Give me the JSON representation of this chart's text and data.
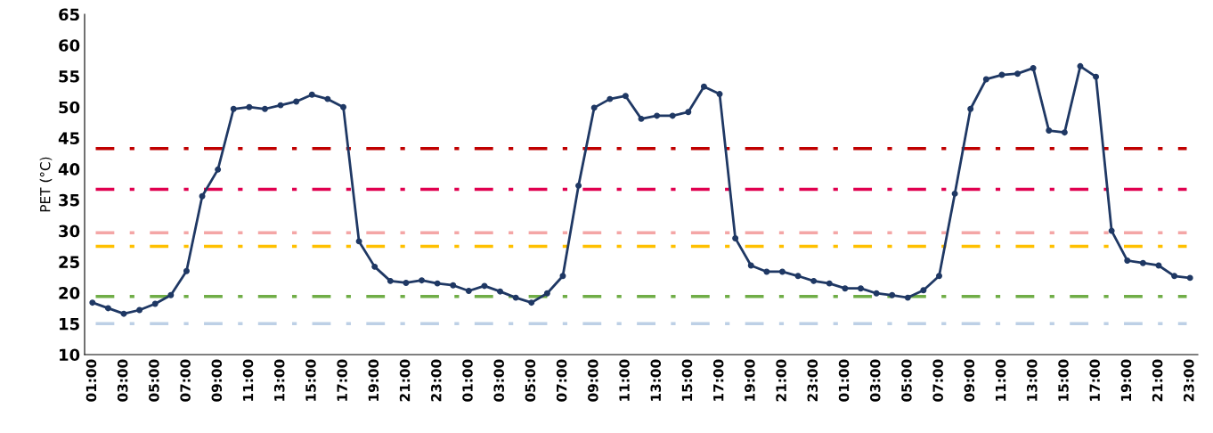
{
  "chart_data": {
    "type": "line",
    "ylabel": "PET (°C)",
    "categories": [
      "01:00",
      null,
      "03:00",
      null,
      "05:00",
      null,
      "07:00",
      null,
      "09:00",
      null,
      "11:00",
      null,
      "13:00",
      null,
      "15:00",
      null,
      "17:00",
      null,
      "19:00",
      null,
      "21:00",
      null,
      "23:00",
      null,
      "01:00",
      null,
      "03:00",
      null,
      "05:00",
      null,
      "07:00",
      null,
      "09:00",
      null,
      "11:00",
      null,
      "13:00",
      null,
      "15:00",
      null,
      "17:00",
      null,
      "19:00",
      null,
      "21:00",
      null,
      "23:00",
      null,
      "01:00",
      null,
      "03:00",
      null,
      "05:00",
      null,
      "07:00",
      null,
      "09:00",
      null,
      "11:00",
      null,
      "13:00",
      null,
      "15:00",
      null,
      "17:00",
      null,
      "19:00",
      null,
      "21:00",
      null,
      "23:00"
    ],
    "series": [
      {
        "color": "#1f3864",
        "values": [
          18.4,
          17.5,
          16.6,
          17.2,
          18.2,
          19.6,
          23.5,
          35.6,
          39.9,
          49.7,
          50.0,
          49.7,
          50.3,
          50.9,
          52.0,
          51.3,
          50.0,
          28.3,
          24.2,
          21.9,
          21.6,
          22.0,
          21.5,
          21.2,
          20.3,
          21.1,
          20.2,
          19.2,
          18.4,
          19.9,
          22.7,
          37.3,
          49.9,
          51.3,
          51.8,
          48.1,
          48.6,
          48.6,
          49.2,
          53.3,
          52.1,
          28.8,
          24.4,
          23.4,
          23.4,
          22.7,
          21.9,
          21.5,
          20.7,
          20.7,
          19.9,
          19.6,
          19.2,
          20.4,
          22.7,
          36.0,
          49.7,
          54.5,
          55.2,
          55.4,
          56.3,
          46.2,
          45.9,
          56.6,
          54.9,
          30.0,
          25.2,
          24.8,
          24.4,
          22.7,
          22.4
        ]
      }
    ],
    "ylim": [
      10,
      65
    ],
    "yticks": [
      10,
      15,
      20,
      25,
      30,
      35,
      40,
      45,
      50,
      55,
      60,
      65
    ],
    "marker": "circle",
    "line_style": "solid",
    "grid": false,
    "legend": false,
    "ref_lines": [
      {
        "axis": "y",
        "value": 43.3,
        "color": "#c00000",
        "line_style": "dashdot"
      },
      {
        "axis": "y",
        "value": 36.7,
        "color": "#e0004f",
        "line_style": "dashdot"
      },
      {
        "axis": "y",
        "value": 29.7,
        "color": "#f4a6a6",
        "line_style": "dashdot"
      },
      {
        "axis": "y",
        "value": 27.5,
        "color": "#ffc000",
        "line_style": "dashdot"
      },
      {
        "axis": "y",
        "value": 19.4,
        "color": "#70ad47",
        "line_style": "dashdot"
      },
      {
        "axis": "y",
        "value": 15.0,
        "color": "#bdd0e6",
        "line_style": "dashdot"
      }
    ]
  }
}
